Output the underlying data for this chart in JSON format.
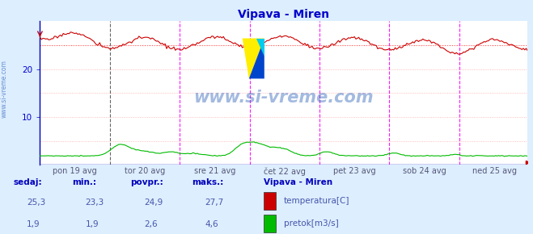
{
  "title": "Vipava - Miren",
  "title_color": "#0000cc",
  "bg_color": "#ddeeff",
  "plot_bg_color": "#ffffff",
  "axis_color": "#0000bb",
  "grid_color": "#ffaaaa",
  "vline_color_first": "#555555",
  "vline_color": "#ff00ff",
  "temp_color": "#cc0000",
  "flow_color": "#00bb00",
  "avg_line_color": "#ff6666",
  "ytick_color": "#0000cc",
  "xtick_color": "#555577",
  "ylim": [
    0,
    30
  ],
  "yticks": [
    10,
    20
  ],
  "day_labels": [
    "pon 19 avg",
    "tor 20 avg",
    "sre 21 avg",
    "čet 22 avg",
    "pet 23 avg",
    "sob 24 avg",
    "ned 25 avg"
  ],
  "temp_avg": 24.9,
  "temp_min": 23.3,
  "temp_max": 27.7,
  "temp_current": 25.3,
  "flow_avg": 2.6,
  "flow_min": 1.9,
  "flow_max": 4.6,
  "flow_current": 1.9,
  "watermark": "www.si-vreme.com",
  "watermark_color": "#3366bb",
  "station_label": "Vipava - Miren",
  "legend_labels": [
    "temperatura[C]",
    "pretok[m3/s]"
  ],
  "legend_colors": [
    "#cc0000",
    "#00bb00"
  ],
  "table_headers": [
    "sedaj:",
    "min.:",
    "povpr.:",
    "maks.:"
  ],
  "table_values_temp": [
    "25,3",
    "23,3",
    "24,9",
    "27,7"
  ],
  "table_values_flow": [
    "1,9",
    "1,9",
    "2,6",
    "4,6"
  ],
  "sidebar_text": "www.si-vreme.com",
  "sidebar_color": "#3366bb"
}
